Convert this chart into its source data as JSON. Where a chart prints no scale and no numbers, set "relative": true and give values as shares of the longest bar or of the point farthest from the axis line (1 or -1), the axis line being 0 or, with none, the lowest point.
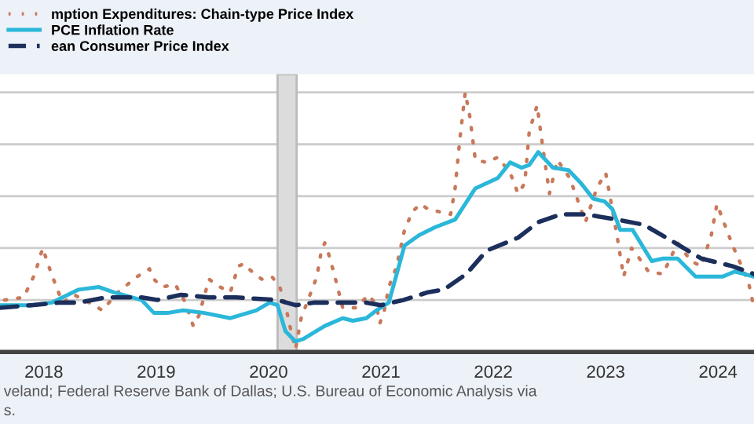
{
  "chart_data": {
    "type": "line",
    "relative": true,
    "grid": "y",
    "legend": "top left",
    "xlim": [
      2017.61,
      2024.32
    ],
    "xticks": [
      2018,
      2019,
      2020,
      2021,
      2022,
      2023,
      2024
    ],
    "bands": [
      {
        "axis": "x",
        "from": 2020.08,
        "to": 2020.25,
        "color": "#dcdcdc"
      }
    ],
    "annotations": [
      "veland; Federal Reserve Bank of Dallas; U.S. Bureau of Economic Analysis via",
      "s."
    ],
    "series": [
      {
        "name": "mption Expenditures: Chain-type Price Index",
        "color": "#c8795a",
        "line_style": "dotted",
        "x": [
          2017.65,
          2017.82,
          2017.92,
          2017.99,
          2018.06,
          2018.13,
          2018.17,
          2018.27,
          2018.45,
          2018.52,
          2018.66,
          2018.83,
          2018.94,
          2018.98,
          2019.05,
          2019.17,
          2019.26,
          2019.33,
          2019.38,
          2019.47,
          2019.57,
          2019.66,
          2019.73,
          2019.78,
          2019.85,
          2019.94,
          2020.03,
          2020.1,
          2020.15,
          2020.19,
          2020.24,
          2020.29,
          2020.36,
          2020.43,
          2020.47,
          2020.5,
          2020.54,
          2020.59,
          2020.66,
          2020.78,
          2020.89,
          2020.96,
          2020.99,
          2021.03,
          2021.07,
          2021.14,
          2021.21,
          2021.28,
          2021.35,
          2021.42,
          2021.52,
          2021.62,
          2021.66,
          2021.7,
          2021.75,
          2021.79,
          2021.84,
          2021.94,
          2022.04,
          2022.15,
          2022.22,
          2022.28,
          2022.32,
          2022.39,
          2022.44,
          2022.5,
          2022.57,
          2022.68,
          2022.78,
          2022.82,
          2022.92,
          2023.0,
          2023.03,
          2023.1,
          2023.16,
          2023.23,
          2023.3,
          2023.38,
          2023.51,
          2023.64,
          2023.76,
          2023.85,
          2023.94,
          2023.99,
          2024.06,
          2024.13,
          2024.2,
          2024.27,
          2024.32
        ],
        "values": [
          0.2,
          0.21,
          0.3,
          0.4,
          0.31,
          0.23,
          0.19,
          0.22,
          0.18,
          0.16,
          0.23,
          0.29,
          0.32,
          0.28,
          0.25,
          0.26,
          0.19,
          0.1,
          0.14,
          0.28,
          0.25,
          0.23,
          0.33,
          0.34,
          0.31,
          0.28,
          0.29,
          0.25,
          0.18,
          0.1,
          0.01,
          0.13,
          0.21,
          0.29,
          0.39,
          0.42,
          0.37,
          0.29,
          0.17,
          0.17,
          0.22,
          0.18,
          0.11,
          0.16,
          0.25,
          0.33,
          0.47,
          0.54,
          0.57,
          0.55,
          0.54,
          0.53,
          0.63,
          0.81,
          1.0,
          0.91,
          0.74,
          0.73,
          0.75,
          0.69,
          0.61,
          0.65,
          0.85,
          0.95,
          0.79,
          0.61,
          0.74,
          0.67,
          0.55,
          0.5,
          0.63,
          0.69,
          0.62,
          0.45,
          0.29,
          0.4,
          0.36,
          0.31,
          0.3,
          0.42,
          0.35,
          0.33,
          0.45,
          0.57,
          0.49,
          0.41,
          0.34,
          0.27,
          0.17
        ]
      },
      {
        "name": "PCE Inflation Rate",
        "color": "#2bb7d9",
        "line_style": "solid",
        "x": [
          2017.61,
          2017.89,
          2018.07,
          2018.31,
          2018.49,
          2018.62,
          2018.87,
          2018.98,
          2019.1,
          2019.24,
          2019.43,
          2019.66,
          2019.89,
          2020.01,
          2020.08,
          2020.15,
          2020.24,
          2020.31,
          2020.5,
          2020.66,
          2020.75,
          2020.87,
          2020.96,
          2021.07,
          2021.21,
          2021.34,
          2021.48,
          2021.66,
          2021.84,
          2022.04,
          2022.15,
          2022.25,
          2022.32,
          2022.4,
          2022.53,
          2022.67,
          2022.78,
          2022.89,
          2022.99,
          2023.06,
          2023.13,
          2023.24,
          2023.41,
          2023.51,
          2023.64,
          2023.8,
          2024.04,
          2024.15,
          2024.32
        ],
        "values": [
          0.18,
          0.18,
          0.19,
          0.24,
          0.25,
          0.23,
          0.2,
          0.15,
          0.15,
          0.16,
          0.15,
          0.13,
          0.16,
          0.19,
          0.18,
          0.08,
          0.04,
          0.05,
          0.1,
          0.13,
          0.12,
          0.13,
          0.16,
          0.19,
          0.41,
          0.45,
          0.48,
          0.51,
          0.63,
          0.67,
          0.73,
          0.71,
          0.72,
          0.77,
          0.71,
          0.7,
          0.65,
          0.59,
          0.58,
          0.55,
          0.47,
          0.47,
          0.35,
          0.36,
          0.36,
          0.29,
          0.29,
          0.31,
          0.29
        ]
      },
      {
        "name": "ean Consumer Price Index",
        "color": "#1c2f5c",
        "line_style": "dashed",
        "x": [
          2017.61,
          2017.89,
          2018.13,
          2018.31,
          2018.55,
          2018.87,
          2019.01,
          2019.22,
          2019.47,
          2019.71,
          2020.08,
          2020.24,
          2020.4,
          2020.64,
          2020.87,
          2021.0,
          2021.2,
          2021.42,
          2021.56,
          2021.76,
          2021.94,
          2022.22,
          2022.4,
          2022.6,
          2022.82,
          2023.1,
          2023.34,
          2023.58,
          2023.85,
          2024.13,
          2024.32
        ],
        "values": [
          0.17,
          0.18,
          0.19,
          0.19,
          0.21,
          0.21,
          0.2,
          0.22,
          0.21,
          0.21,
          0.2,
          0.18,
          0.19,
          0.19,
          0.19,
          0.18,
          0.2,
          0.23,
          0.24,
          0.3,
          0.39,
          0.44,
          0.5,
          0.53,
          0.53,
          0.51,
          0.49,
          0.43,
          0.36,
          0.33,
          0.3
        ]
      }
    ]
  }
}
